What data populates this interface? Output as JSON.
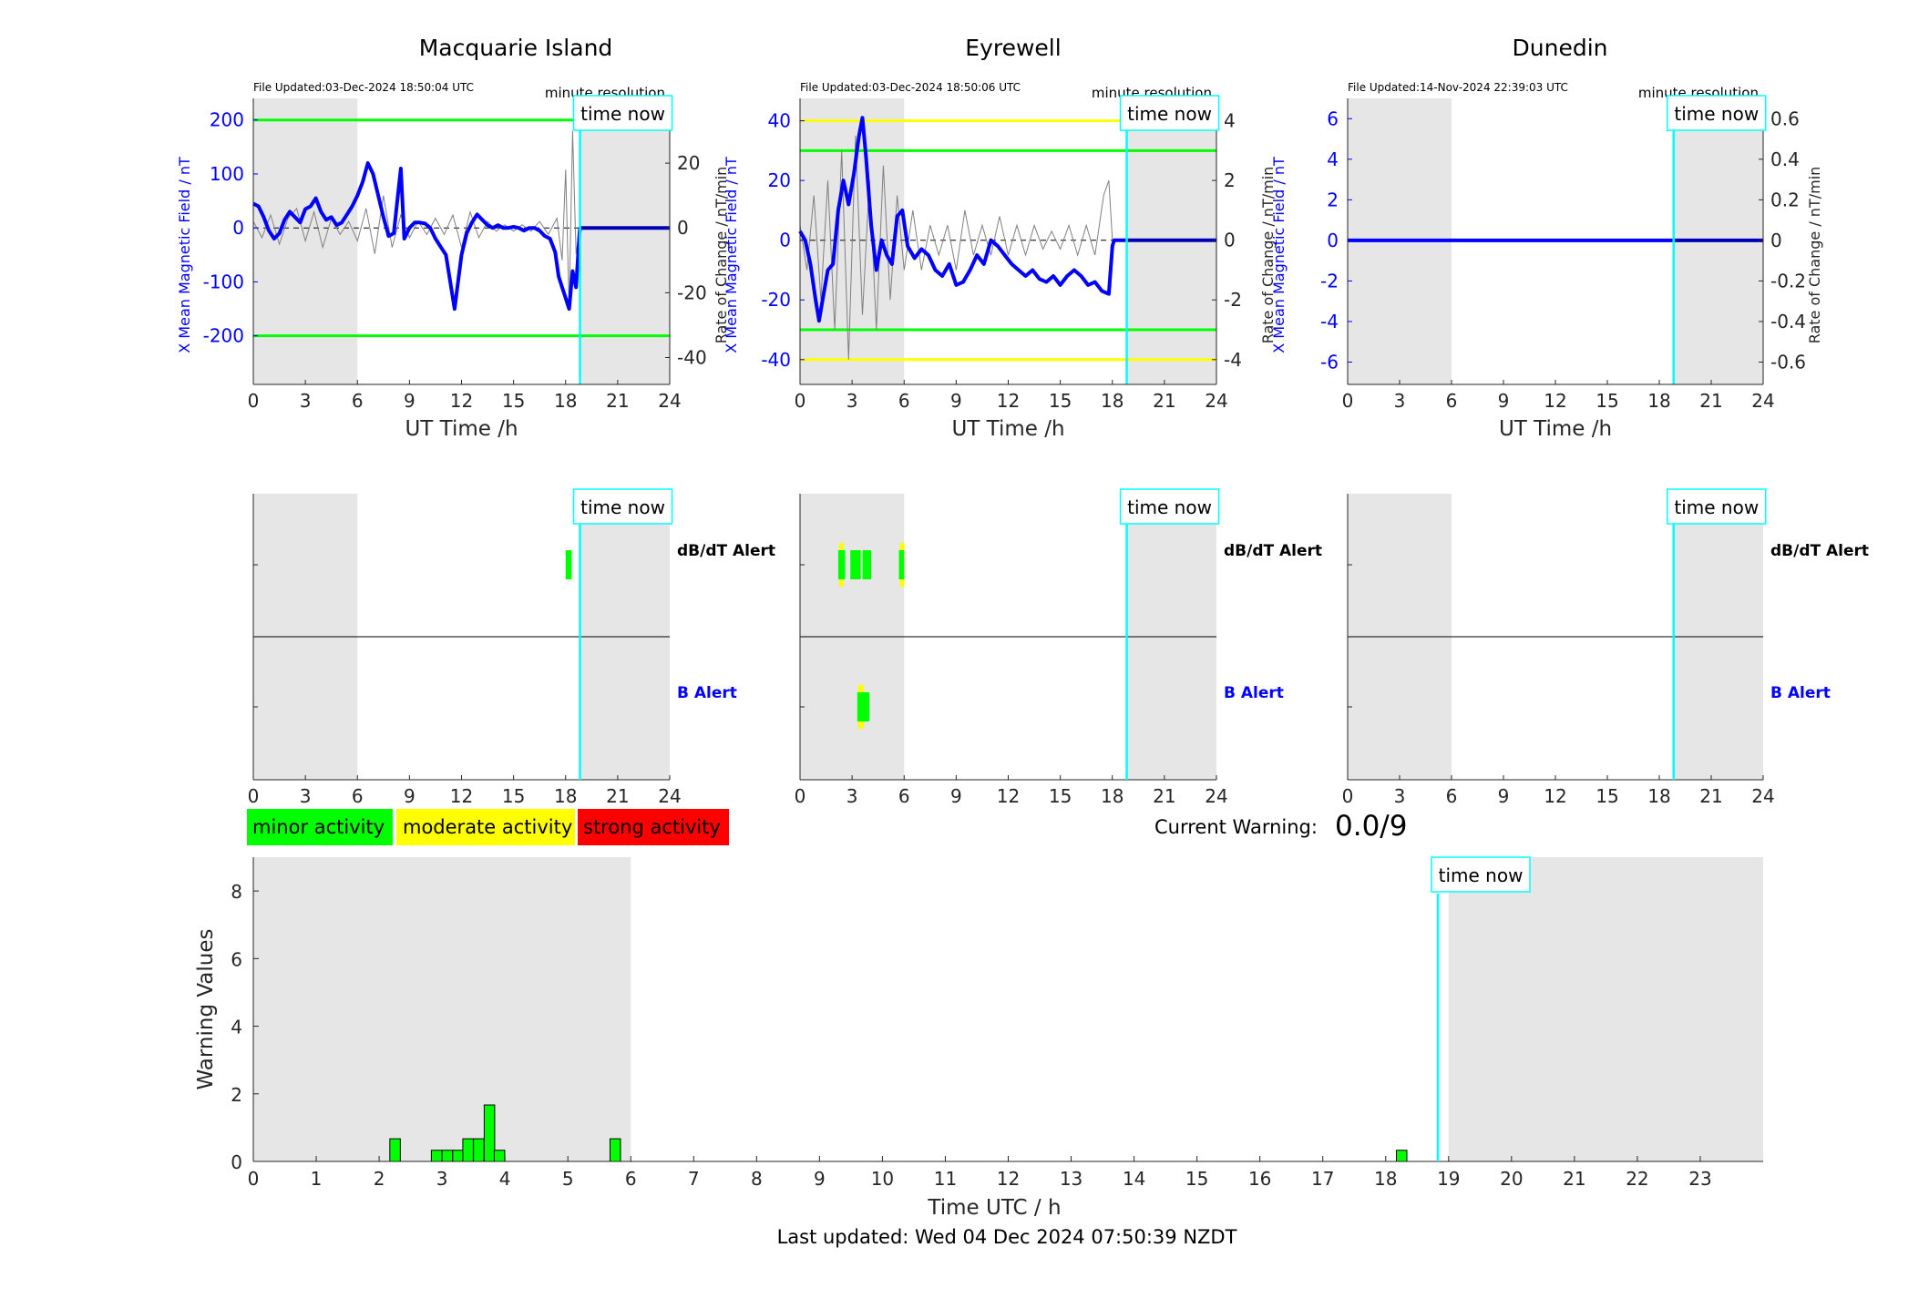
{
  "colors": {
    "night_shade": "#e6e6e6",
    "x_field_line": "#0000ff",
    "rate_line": "#808080",
    "threshold_green": "#00ff00",
    "threshold_yellow": "#ffff00",
    "time_now": "#00ffff",
    "minor": "#00ff00",
    "moderate": "#ffff00",
    "strong": "#ff0000",
    "axis": "#262626",
    "axis_blue": "#0000ff"
  },
  "common": {
    "time_now_label": "time now",
    "minute_resolution": "minute resolution",
    "x_axis_label": "UT Time /h",
    "left_axis_label": "X Mean Magnetic Field / nT",
    "right_axis_label": "Rate of Change / nT/min",
    "dbdt_alert_label": "dB/dT Alert",
    "b_alert_label": "B Alert",
    "time_now_hour": 18.83
  },
  "stations": [
    {
      "name": "Macquarie Island",
      "file_updated": "File Updated:03-Dec-2024 18:50:04 UTC",
      "left_ticks": [
        "-200",
        "-100",
        "0",
        "100",
        "200"
      ],
      "right_ticks": [
        "-40",
        "-20",
        "0",
        "20"
      ],
      "x_ticks": [
        "0",
        "3",
        "6",
        "9",
        "12",
        "15",
        "18",
        "21",
        "24"
      ]
    },
    {
      "name": "Eyrewell",
      "file_updated": "File Updated:03-Dec-2024 18:50:06 UTC",
      "left_ticks": [
        "-40",
        "-20",
        "0",
        "20",
        "40"
      ],
      "right_ticks": [
        "-4",
        "-2",
        "0",
        "2",
        "4"
      ],
      "x_ticks": [
        "0",
        "3",
        "6",
        "9",
        "12",
        "15",
        "18",
        "21",
        "24"
      ]
    },
    {
      "name": "Dunedin",
      "file_updated": "File Updated:14-Nov-2024 22:39:03 UTC",
      "left_ticks": [
        "-6",
        "-4",
        "-2",
        "0",
        "2",
        "4",
        "6"
      ],
      "right_ticks": [
        "-0.6",
        "-0.4",
        "-0.2",
        "0",
        "0.2",
        "0.4",
        "0.6"
      ],
      "x_ticks": [
        "0",
        "3",
        "6",
        "9",
        "12",
        "15",
        "18",
        "21",
        "24"
      ]
    }
  ],
  "legend": {
    "minor": "minor activity",
    "moderate": "moderate activity",
    "strong": "strong activity"
  },
  "current_warning": {
    "label": "Current Warning:",
    "value": "0.0/9"
  },
  "bottom": {
    "ylabel": "Warning Values",
    "xlabel": "Time UTC / h",
    "y_ticks": [
      "0",
      "2",
      "4",
      "6",
      "8"
    ],
    "x_ticks": [
      "0",
      "1",
      "2",
      "3",
      "4",
      "5",
      "6",
      "7",
      "8",
      "9",
      "10",
      "11",
      "12",
      "13",
      "14",
      "15",
      "16",
      "17",
      "18",
      "19",
      "20",
      "21",
      "22",
      "23"
    ]
  },
  "last_updated": "Last updated: Wed 04 Dec 2024 07:50:39 NZDT",
  "chart_data": [
    {
      "type": "line",
      "title": "Macquarie Island",
      "xlabel": "UT Time /h",
      "ylabel": "X Mean Magnetic Field / nT",
      "y2label": "Rate of Change / nT/min",
      "xlim": [
        0,
        24
      ],
      "ylim": [
        -290,
        240
      ],
      "y2lim": [
        -48.3,
        40
      ],
      "night_shading": [
        [
          0,
          6
        ],
        [
          18.83,
          24
        ]
      ],
      "thresholds": [
        {
          "value": 200,
          "color": "green"
        },
        {
          "value": -200,
          "color": "green"
        }
      ],
      "series": [
        {
          "axis": "left",
          "x": [
            0,
            0.3,
            0.6,
            0.9,
            1.2,
            1.5,
            1.8,
            2.1,
            2.4,
            2.7,
            3.0,
            3.3,
            3.6,
            3.9,
            4.2,
            4.5,
            4.8,
            5.1,
            5.4,
            5.7,
            6.0,
            6.3,
            6.6,
            6.9,
            7.2,
            7.5,
            7.8,
            8.1,
            8.3,
            8.5,
            8.7,
            9.0,
            9.3,
            9.6,
            9.9,
            10.2,
            10.5,
            10.8,
            11.1,
            11.4,
            11.6,
            11.8,
            12.0,
            12.3,
            12.6,
            12.9,
            13.2,
            13.5,
            13.8,
            14.1,
            14.4,
            14.7,
            15.0,
            15.3,
            15.6,
            15.9,
            16.2,
            16.5,
            16.8,
            17.1,
            17.4,
            17.6,
            17.8,
            18.0,
            18.2,
            18.4,
            18.6,
            18.8,
            18.83,
            24
          ],
          "y": [
            45,
            40,
            20,
            -5,
            -20,
            -10,
            15,
            30,
            20,
            10,
            35,
            40,
            55,
            30,
            15,
            20,
            5,
            10,
            25,
            40,
            60,
            85,
            120,
            100,
            60,
            20,
            -15,
            -10,
            50,
            110,
            -20,
            0,
            10,
            10,
            8,
            0,
            -20,
            -35,
            -50,
            -110,
            -150,
            -100,
            -50,
            -10,
            10,
            25,
            15,
            5,
            0,
            5,
            0,
            0,
            2,
            0,
            -5,
            0,
            0,
            -5,
            -15,
            -20,
            -45,
            -90,
            -110,
            -130,
            -150,
            -80,
            -110,
            -10,
            0,
            0
          ]
        },
        {
          "axis": "right",
          "x": [
            0,
            0.5,
            1,
            1.5,
            2,
            2.5,
            3,
            3.5,
            4,
            4.5,
            5,
            5.5,
            6,
            6.5,
            7,
            7.5,
            8,
            8.5,
            9,
            9.5,
            10,
            10.5,
            11,
            11.5,
            12,
            12.5,
            13,
            13.5,
            14,
            14.5,
            15,
            15.5,
            16,
            16.5,
            17,
            17.5,
            17.8,
            18,
            18.2,
            18.4,
            18.6,
            18.8
          ],
          "y": [
            2,
            -3,
            4,
            -5,
            3,
            6,
            -4,
            5,
            -6,
            3,
            -2,
            2,
            -4,
            6,
            -8,
            10,
            -6,
            4,
            -3,
            2,
            -2,
            3,
            -2,
            4,
            -6,
            5,
            -3,
            2,
            -1,
            1,
            -1,
            1,
            -1,
            2,
            -2,
            3,
            -10,
            18,
            -25,
            30,
            -8,
            0
          ]
        }
      ]
    },
    {
      "type": "line",
      "title": "Eyrewell",
      "xlabel": "UT Time /h",
      "ylabel": "X Mean Magnetic Field / nT",
      "y2label": "Rate of Change / nT/min",
      "xlim": [
        0,
        24
      ],
      "ylim": [
        -48.3,
        47.5
      ],
      "y2lim": [
        -4.83,
        4.75
      ],
      "night_shading": [
        [
          0,
          6
        ],
        [
          18.83,
          24
        ]
      ],
      "thresholds": [
        {
          "value": 40,
          "color": "yellow"
        },
        {
          "value": 30,
          "color": "green"
        },
        {
          "value": -30,
          "color": "green"
        },
        {
          "value": -40,
          "color": "yellow"
        }
      ],
      "series": [
        {
          "axis": "left",
          "x": [
            0,
            0.3,
            0.6,
            0.9,
            1.1,
            1.3,
            1.6,
            1.9,
            2.2,
            2.5,
            2.8,
            3.1,
            3.4,
            3.6,
            3.8,
            4.1,
            4.4,
            4.7,
            5.0,
            5.3,
            5.6,
            5.9,
            6.2,
            6.6,
            7.0,
            7.4,
            7.8,
            8.2,
            8.6,
            9.0,
            9.4,
            9.8,
            10.2,
            10.6,
            11.0,
            11.4,
            11.8,
            12.2,
            12.6,
            13.0,
            13.4,
            13.8,
            14.2,
            14.6,
            15.0,
            15.4,
            15.8,
            16.2,
            16.6,
            17.0,
            17.4,
            17.8,
            18.0,
            18.1,
            24
          ],
          "y": [
            3,
            0,
            -8,
            -20,
            -27,
            -20,
            -10,
            -8,
            10,
            20,
            12,
            22,
            35,
            41,
            28,
            5,
            -10,
            0,
            -5,
            -8,
            8,
            10,
            -2,
            -6,
            -3,
            -5,
            -10,
            -12,
            -8,
            -15,
            -14,
            -10,
            -5,
            -8,
            0,
            -2,
            -5,
            -8,
            -10,
            -12,
            -10,
            -13,
            -14,
            -12,
            -15,
            -12,
            -10,
            -12,
            -15,
            -14,
            -17,
            -18,
            -2,
            0,
            0
          ]
        },
        {
          "axis": "right",
          "x": [
            0,
            0.4,
            0.8,
            1.2,
            1.6,
            2,
            2.4,
            2.8,
            3.2,
            3.6,
            4,
            4.4,
            4.8,
            5.2,
            5.6,
            6,
            6.5,
            7,
            7.5,
            8,
            8.5,
            9,
            9.5,
            10,
            10.5,
            11,
            11.5,
            12,
            12.5,
            13,
            13.5,
            14,
            14.5,
            15,
            15.5,
            16,
            16.5,
            17,
            17.5,
            17.8,
            18
          ],
          "y": [
            0.5,
            -1,
            1.5,
            -2,
            2,
            -3,
            3,
            -4,
            3.5,
            -2.5,
            2,
            -3,
            2.5,
            -2,
            1.5,
            -1,
            1,
            -1,
            0.5,
            -0.5,
            0.5,
            -1,
            1,
            -0.5,
            0.5,
            -0.5,
            0.8,
            -0.5,
            0.5,
            -0.5,
            0.5,
            -0.3,
            0.3,
            -0.3,
            0.5,
            -0.5,
            0.5,
            -0.5,
            1.5,
            2,
            0
          ]
        }
      ]
    },
    {
      "type": "line",
      "title": "Dunedin",
      "xlabel": "UT Time /h",
      "ylabel": "X Mean Magnetic Field / nT",
      "y2label": "Rate of Change / nT/min",
      "xlim": [
        0,
        24
      ],
      "ylim": [
        -7.1,
        7.0
      ],
      "y2lim": [
        -0.71,
        0.7
      ],
      "night_shading": [
        [
          0,
          6
        ],
        [
          18.83,
          24
        ]
      ],
      "series": [
        {
          "axis": "left",
          "x": [
            0,
            24
          ],
          "y": [
            0,
            0
          ]
        },
        {
          "axis": "right",
          "x": [
            0,
            24
          ],
          "y": [
            0,
            0
          ]
        }
      ]
    },
    {
      "type": "alert",
      "station": "Macquarie Island",
      "xlim": [
        0,
        24
      ],
      "dbdt_alerts": [
        {
          "x0": 18.0,
          "x1": 18.35,
          "level": "minor"
        }
      ],
      "b_alerts": []
    },
    {
      "type": "alert",
      "station": "Eyrewell",
      "xlim": [
        0,
        24
      ],
      "dbdt_alerts": [
        {
          "x0": 2.2,
          "x1": 2.6,
          "level": "minor",
          "moderate": true
        },
        {
          "x0": 2.9,
          "x1": 3.5,
          "level": "minor"
        },
        {
          "x0": 3.6,
          "x1": 4.1,
          "level": "minor"
        },
        {
          "x0": 5.7,
          "x1": 6.0,
          "level": "minor",
          "moderate": true
        }
      ],
      "b_alerts": [
        {
          "x0": 3.3,
          "x1": 4.0,
          "level": "minor",
          "moderate": true
        }
      ]
    },
    {
      "type": "alert",
      "station": "Dunedin",
      "xlim": [
        0,
        24
      ],
      "dbdt_alerts": [],
      "b_alerts": []
    },
    {
      "type": "bar",
      "title": "",
      "xlabel": "Time UTC / h",
      "ylabel": "Warning Values",
      "xlim": [
        0,
        24
      ],
      "ylim": [
        0,
        9
      ],
      "night_shading": [
        [
          0,
          6
        ],
        [
          19,
          24
        ]
      ],
      "time_now": 18.83,
      "bar_width_hours": 0.1667,
      "bars": [
        {
          "x": 2.17,
          "value": 0.67
        },
        {
          "x": 2.83,
          "value": 0.33
        },
        {
          "x": 3.0,
          "value": 0.33
        },
        {
          "x": 3.17,
          "value": 0.33
        },
        {
          "x": 3.33,
          "value": 0.67
        },
        {
          "x": 3.5,
          "value": 0.67
        },
        {
          "x": 3.67,
          "value": 1.67
        },
        {
          "x": 3.83,
          "value": 0.33
        },
        {
          "x": 5.67,
          "value": 0.67
        },
        {
          "x": 18.17,
          "value": 0.33
        }
      ]
    }
  ]
}
